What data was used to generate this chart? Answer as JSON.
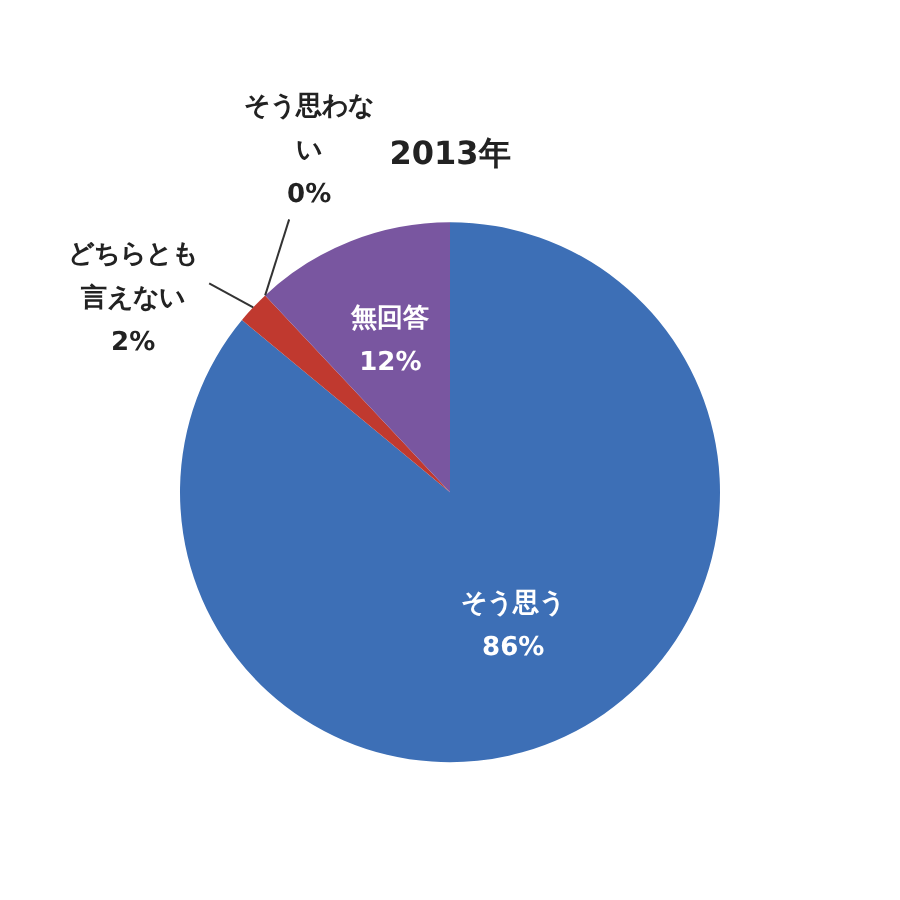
{
  "chart_data": {
    "type": "pie",
    "title": "2013年",
    "categories": [
      "そう思う",
      "どちらとも言えない",
      "そう思わない",
      "無回答"
    ],
    "values": [
      86,
      2,
      0,
      12
    ],
    "value_labels": [
      "86%",
      "2%",
      "0%",
      "12%"
    ],
    "colors": [
      "#3d6fb6",
      "#c0392f",
      "#7ea04a",
      "#7956a0"
    ],
    "legend": false
  }
}
